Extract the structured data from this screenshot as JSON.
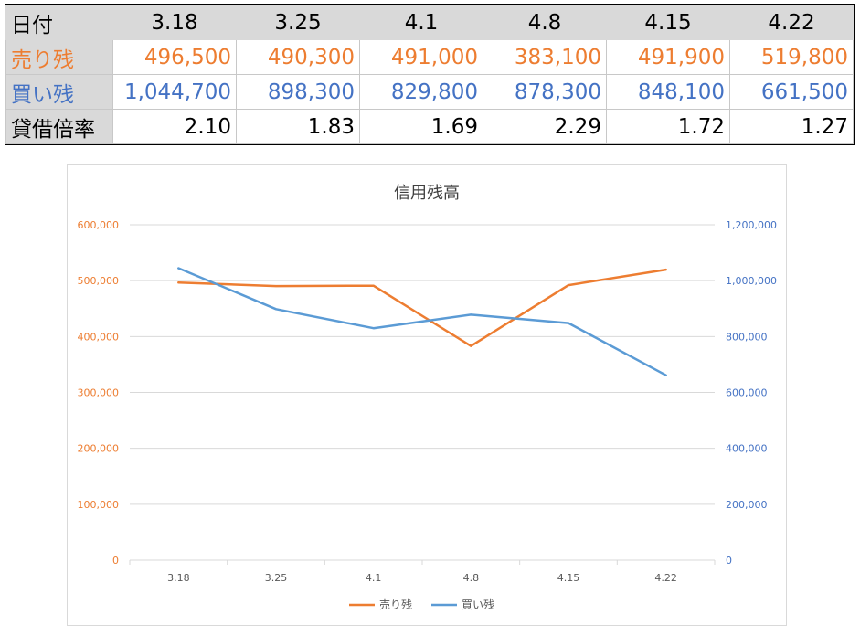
{
  "table": {
    "header_label": "日付",
    "dates": [
      "3.18",
      "3.25",
      "4.1",
      "4.8",
      "4.15",
      "4.22"
    ],
    "rows": [
      {
        "label": "売り残",
        "values": [
          "496,500",
          "490,300",
          "491,000",
          "383,100",
          "491,900",
          "519,800"
        ],
        "color": "#ed7d31"
      },
      {
        "label": "買い残",
        "values": [
          "1,044,700",
          "898,300",
          "829,800",
          "878,300",
          "848,100",
          "661,500"
        ],
        "color": "#4472c4"
      },
      {
        "label": "貸借倍率",
        "values": [
          "2.10",
          "1.83",
          "1.69",
          "2.29",
          "1.72",
          "1.27"
        ],
        "color": "#000000"
      }
    ]
  },
  "chart_data": {
    "type": "line",
    "title": "信用残高",
    "categories": [
      "3.18",
      "3.25",
      "4.1",
      "4.8",
      "4.15",
      "4.22"
    ],
    "series": [
      {
        "name": "売り残",
        "values": [
          496500,
          490300,
          491000,
          383100,
          491900,
          519800
        ],
        "axis": "left",
        "color": "#ed7d31"
      },
      {
        "name": "買い残",
        "values": [
          1044700,
          898300,
          829800,
          878300,
          848100,
          661500
        ],
        "axis": "right",
        "color": "#5b9bd5"
      }
    ],
    "y_left": {
      "min": 0,
      "max": 600000,
      "step": 100000,
      "tick_labels": [
        "0",
        "100,000",
        "200,000",
        "300,000",
        "400,000",
        "500,000",
        "600,000"
      ],
      "color": "#ed7d31"
    },
    "y_right": {
      "min": 0,
      "max": 1200000,
      "step": 200000,
      "tick_labels": [
        "0",
        "200,000",
        "400,000",
        "600,000",
        "800,000",
        "1,000,000",
        "1,200,000"
      ],
      "color": "#4472c4"
    },
    "grid": true,
    "legend_position": "bottom"
  }
}
